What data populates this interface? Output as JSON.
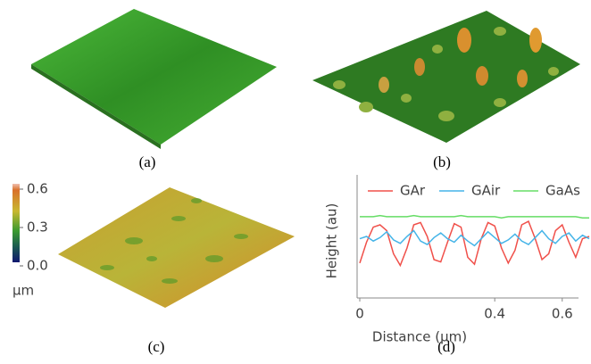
{
  "captions": [
    "(a)",
    "(b)",
    "(c)",
    "(d)"
  ],
  "colorbar": {
    "lim": [
      0,
      0.6
    ],
    "ticks": [
      0.6,
      0.3,
      {
        "value": 0,
        "label": "0.0"
      }
    ],
    "unit": "µm"
  },
  "chart_data": {
    "type": "line",
    "xlabel": "Distance (µm)",
    "ylabel": "Height (au)",
    "xlim": [
      0,
      0.68
    ],
    "xticks": [
      0,
      0.4,
      0.6
    ],
    "ylim": [
      0,
      10
    ],
    "legend": "top",
    "x": [
      0,
      0.02,
      0.04,
      0.06,
      0.08,
      0.1,
      0.12,
      0.14,
      0.16,
      0.18,
      0.2,
      0.22,
      0.24,
      0.26,
      0.28,
      0.3,
      0.32,
      0.34,
      0.36,
      0.38,
      0.4,
      0.42,
      0.44,
      0.46,
      0.48,
      0.5,
      0.52,
      0.54,
      0.56,
      0.58,
      0.6,
      0.62,
      0.64,
      0.66,
      0.68
    ],
    "series": [
      {
        "name": "GAr",
        "color": "#f0504a",
        "values": [
          2.7,
          4.5,
          5.8,
          6.0,
          5.5,
          3.5,
          2.5,
          4.0,
          6.0,
          6.2,
          5.0,
          3.0,
          2.8,
          4.5,
          6.1,
          5.8,
          3.2,
          2.6,
          4.8,
          6.2,
          5.9,
          4.0,
          2.7,
          3.8,
          6.0,
          6.3,
          4.8,
          3.0,
          3.5,
          5.5,
          6.0,
          4.5,
          3.2,
          4.8,
          5.0
        ]
      },
      {
        "name": "GAir",
        "color": "#45b4e8",
        "values": [
          4.8,
          5.0,
          4.6,
          4.9,
          5.4,
          4.7,
          4.4,
          5.0,
          5.5,
          4.6,
          4.3,
          4.9,
          5.3,
          4.8,
          4.5,
          5.1,
          4.6,
          4.2,
          4.8,
          5.4,
          4.9,
          4.4,
          4.7,
          5.2,
          4.6,
          4.3,
          4.9,
          5.5,
          4.8,
          4.4,
          5.0,
          5.3,
          4.6,
          5.1,
          4.8
        ]
      },
      {
        "name": "GaAs",
        "color": "#66dd66",
        "values": [
          6.7,
          6.7,
          6.7,
          6.8,
          6.7,
          6.7,
          6.7,
          6.7,
          6.8,
          6.7,
          6.7,
          6.7,
          6.7,
          6.7,
          6.7,
          6.8,
          6.7,
          6.7,
          6.7,
          6.7,
          6.7,
          6.6,
          6.7,
          6.7,
          6.7,
          6.7,
          6.7,
          6.7,
          6.7,
          6.7,
          6.7,
          6.7,
          6.7,
          6.6,
          6.6
        ]
      }
    ]
  }
}
